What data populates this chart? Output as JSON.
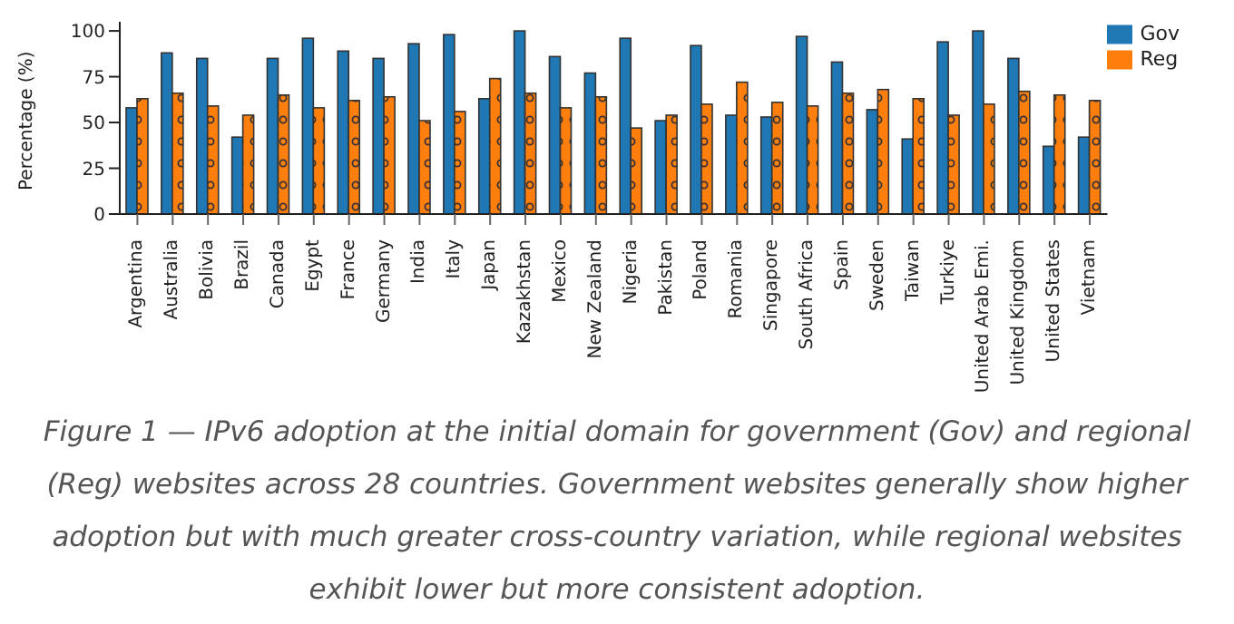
{
  "chart_data": {
    "type": "bar",
    "categories": [
      "Argentina",
      "Australia",
      "Bolivia",
      "Brazil",
      "Canada",
      "Egypt",
      "France",
      "Germany",
      "India",
      "Italy",
      "Japan",
      "Kazakhstan",
      "Mexico",
      "New Zealand",
      "Nigeria",
      "Pakistan",
      "Poland",
      "Romania",
      "Singapore",
      "South Africa",
      "Spain",
      "Sweden",
      "Taiwan",
      "Turkiye",
      "United Arab Emi.",
      "United Kingdom",
      "United States",
      "Vietnam"
    ],
    "series": [
      {
        "name": "Gov",
        "color": "#1f77b4",
        "values": [
          58,
          88,
          85,
          42,
          85,
          96,
          89,
          85,
          93,
          98,
          63,
          100,
          86,
          77,
          96,
          51,
          92,
          54,
          53,
          97,
          83,
          57,
          41,
          94,
          100,
          85,
          37,
          42
        ]
      },
      {
        "name": "Reg",
        "color": "#ff7f0e",
        "values": [
          63,
          66,
          59,
          54,
          65,
          58,
          62,
          64,
          51,
          56,
          74,
          66,
          58,
          64,
          47,
          54,
          60,
          72,
          61,
          59,
          66,
          68,
          63,
          54,
          60,
          67,
          65,
          62
        ]
      }
    ],
    "ylabel": "Percentage (%)",
    "ylim": [
      0,
      105
    ],
    "yticks": [
      0,
      25,
      50,
      75,
      100
    ],
    "legend": "top right",
    "annotations": [
      "Figure 1 — IPv6 adoption at the initial domain for government (Gov) and regional (Reg) websites across 28 countries. Government websites generally show higher adoption but with much greater cross-country variation, while regional websites exhibit lower but more consistent adoption."
    ]
  }
}
